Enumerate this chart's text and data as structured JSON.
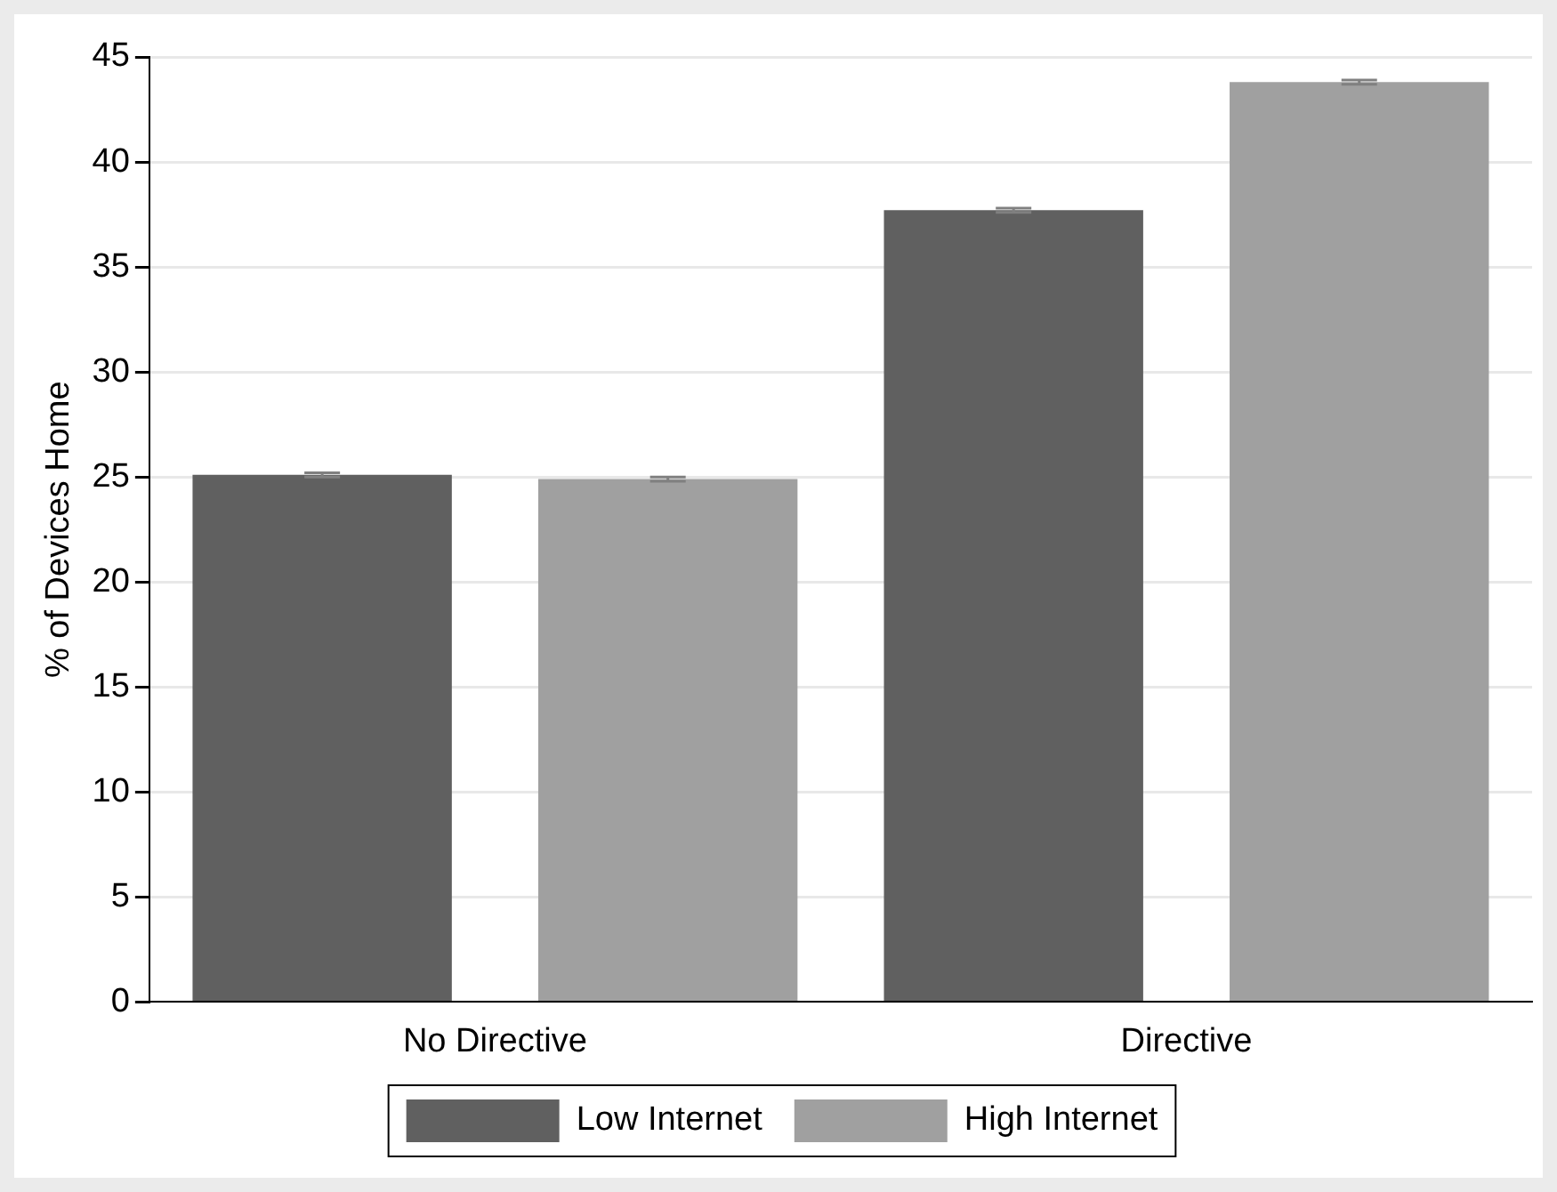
{
  "chart_data": {
    "type": "bar",
    "ylabel": "% of Devices Home",
    "categories": [
      "No Directive",
      "Directive"
    ],
    "series": [
      {
        "name": "Low Internet",
        "color": "#606060",
        "values": [
          25.1,
          37.7
        ],
        "errors": [
          0.1,
          0.1
        ]
      },
      {
        "name": "High Internet",
        "color": "#a0a0a0",
        "values": [
          24.9,
          43.8
        ],
        "errors": [
          0.1,
          0.1
        ]
      }
    ],
    "ylim": [
      0,
      45
    ],
    "yticks": [
      0,
      5,
      10,
      15,
      20,
      25,
      30,
      35,
      40,
      45
    ],
    "grid": "y",
    "legend": "bottom"
  }
}
